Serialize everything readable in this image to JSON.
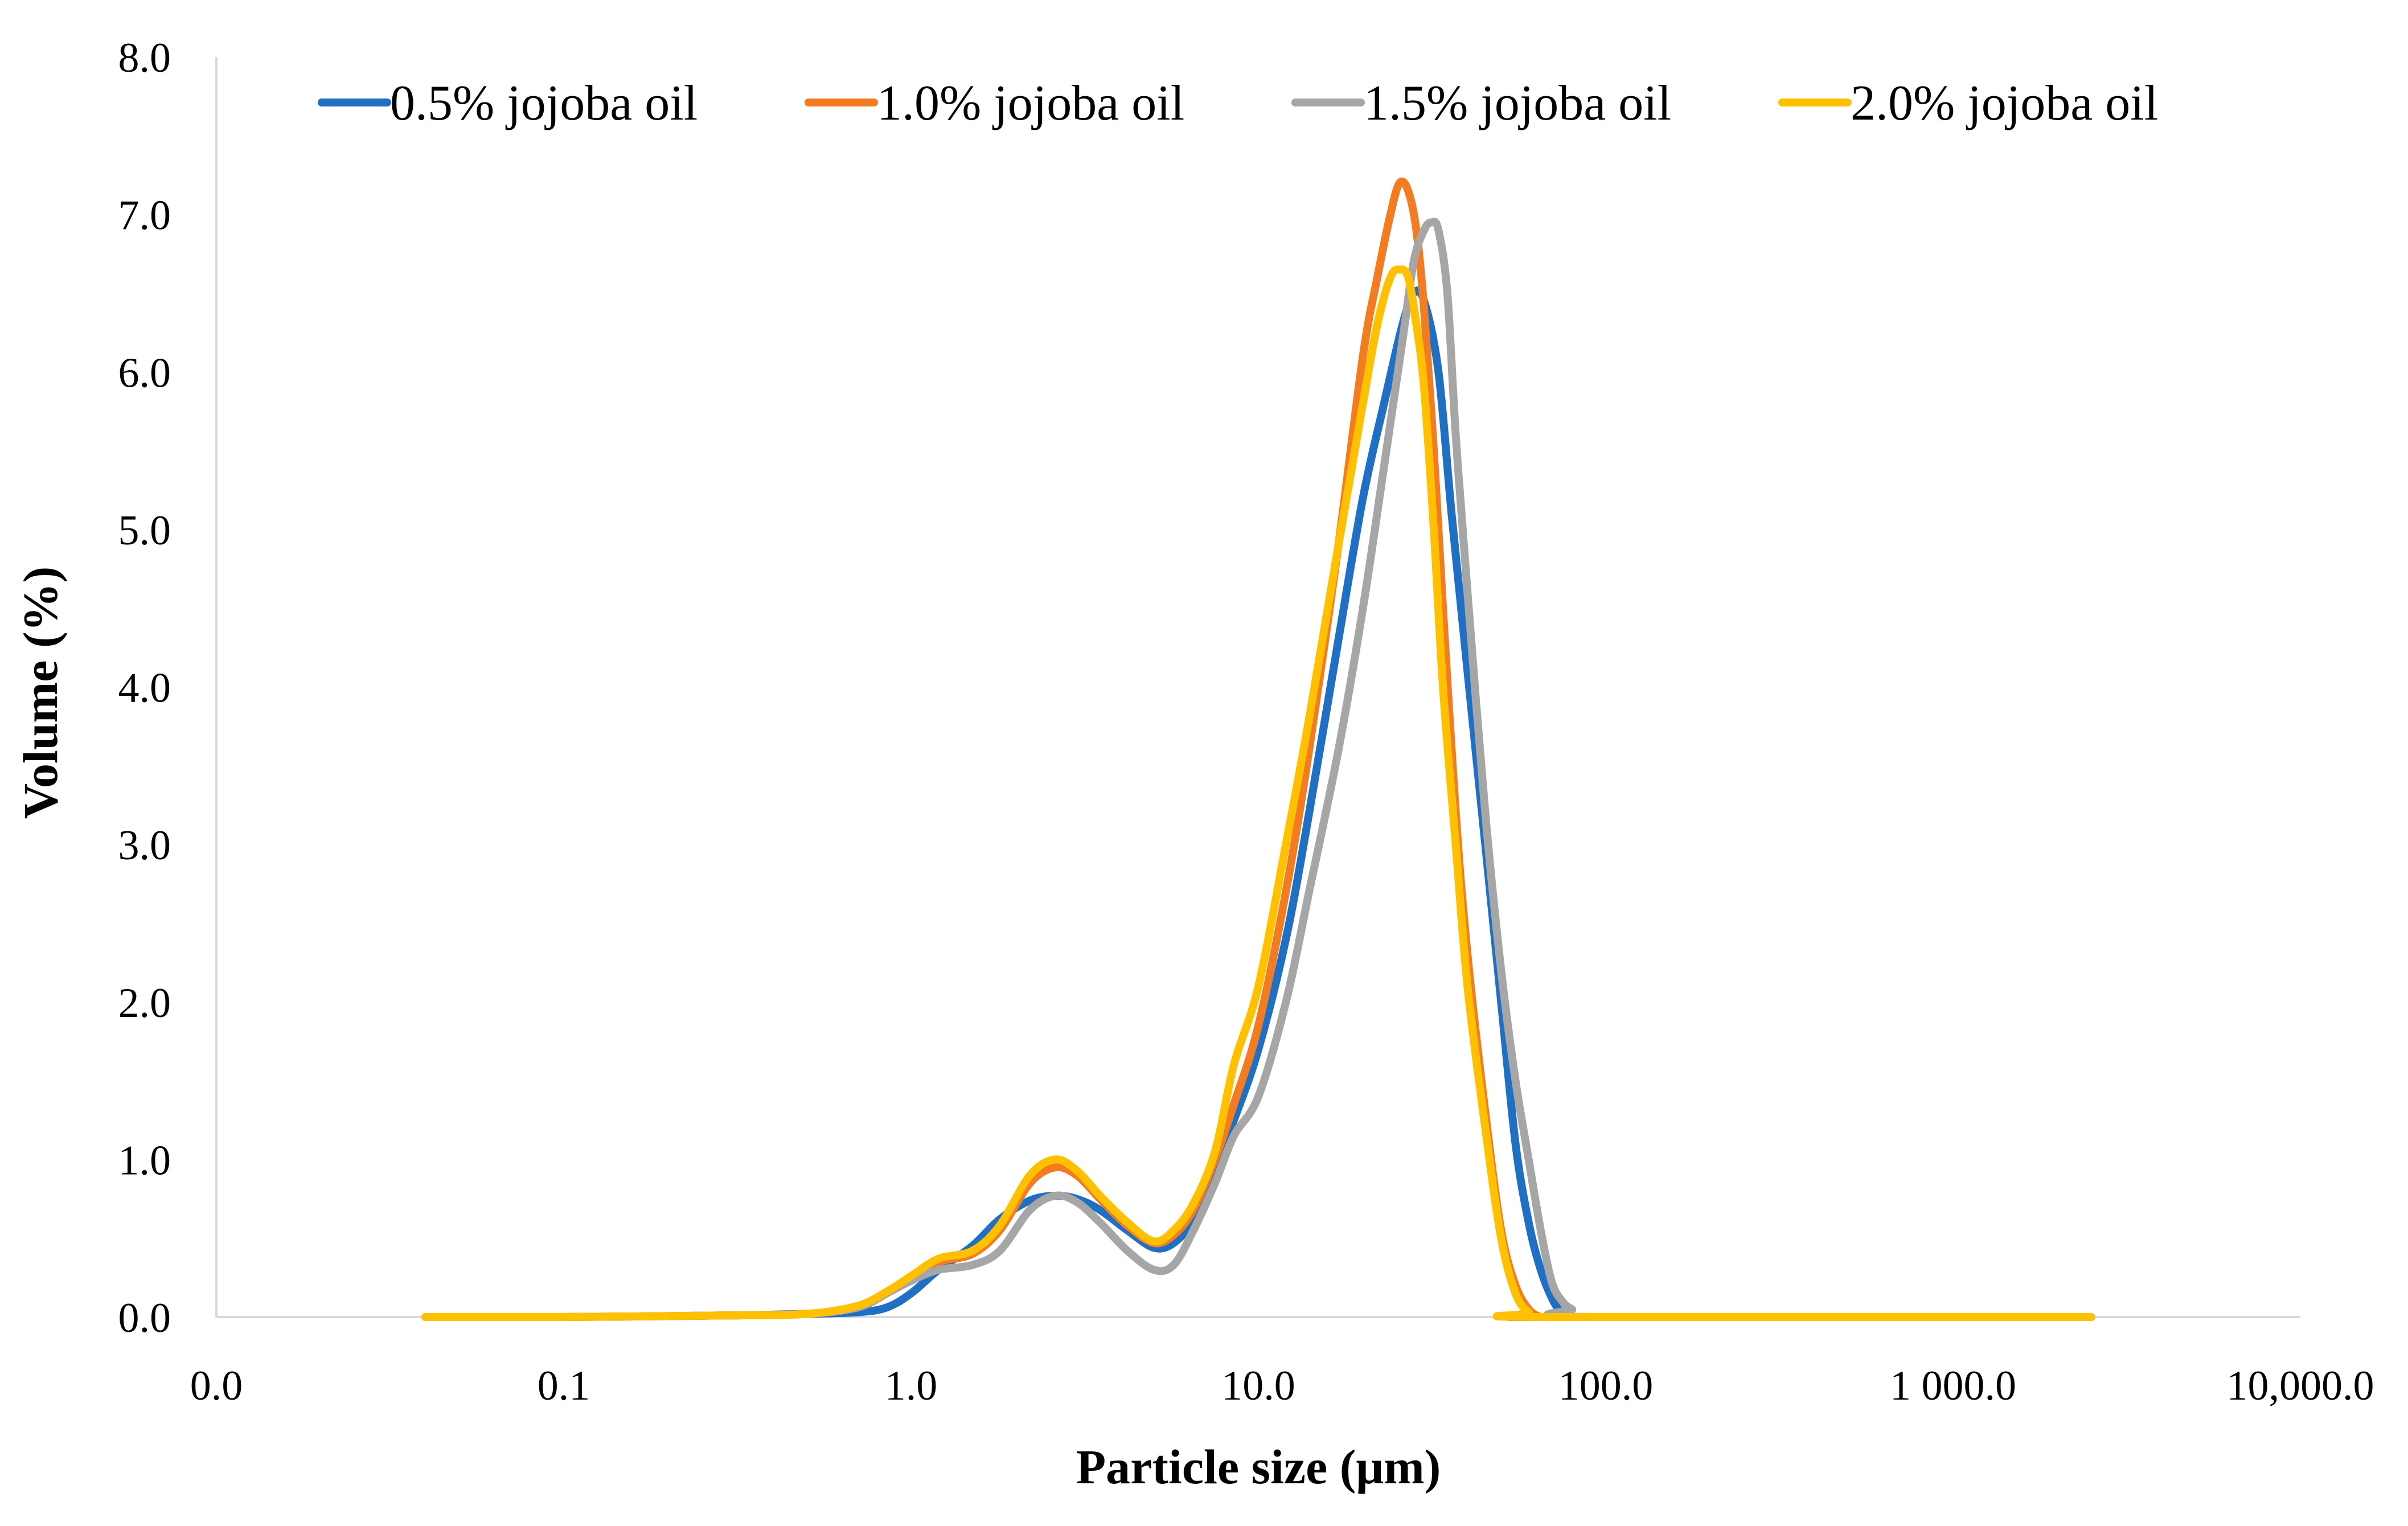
{
  "chart_data": {
    "type": "line",
    "title": "",
    "xlabel": "Particle size (μm)",
    "ylabel": "Volume (%)",
    "x_scale": "log",
    "xlim": [
      0.01,
      10000
    ],
    "ylim": [
      0,
      8
    ],
    "grid": false,
    "legend_position": "top",
    "x_tick_values": [
      0.01,
      0.1,
      1,
      10,
      100,
      1000,
      10000
    ],
    "x_tick_labels": [
      "0.0",
      "0.1",
      "1.0",
      "10.0",
      "100.0",
      "1 000.0",
      "10,000.0"
    ],
    "y_tick_values": [
      0,
      1,
      2,
      3,
      4,
      5,
      6,
      7,
      8
    ],
    "y_tick_labels": [
      "0.0",
      "1.0",
      "2.0",
      "3.0",
      "4.0",
      "5.0",
      "6.0",
      "7.0",
      "8.0"
    ],
    "series": [
      {
        "name": "0.5% jojoba oil",
        "color": "#1f6fc5",
        "x": [
          0.04,
          0.1,
          0.3,
          0.5,
          0.7,
          0.85,
          1.0,
          1.2,
          1.5,
          1.8,
          2.2,
          2.6,
          3.0,
          3.5,
          4.2,
          5.0,
          5.7,
          6.5,
          7.5,
          8.5,
          10,
          12,
          14,
          17,
          20,
          23,
          26,
          28,
          30,
          33,
          36,
          40,
          45,
          50,
          55,
          60,
          65,
          70,
          75,
          80,
          100,
          2500
        ],
        "y": [
          0,
          0,
          0.01,
          0.02,
          0.03,
          0.06,
          0.15,
          0.3,
          0.45,
          0.62,
          0.74,
          0.77,
          0.75,
          0.68,
          0.55,
          0.44,
          0.47,
          0.62,
          0.95,
          1.25,
          1.7,
          2.4,
          3.2,
          4.3,
          5.2,
          5.8,
          6.3,
          6.5,
          6.45,
          6.0,
          5.1,
          4.1,
          3.0,
          2.0,
          1.1,
          0.6,
          0.3,
          0.12,
          0.02,
          0,
          0,
          0
        ]
      },
      {
        "name": "1.0% jojoba oil",
        "color": "#f47c20",
        "x": [
          0.04,
          0.1,
          0.3,
          0.5,
          0.7,
          0.85,
          1.0,
          1.2,
          1.5,
          1.8,
          2.2,
          2.6,
          3.0,
          3.5,
          4.2,
          5.0,
          5.7,
          6.5,
          7.5,
          8.5,
          10,
          12,
          14,
          17,
          20,
          22,
          24,
          25.5,
          27,
          28.5,
          30,
          32,
          34,
          37,
          40,
          45,
          50,
          55,
          60,
          65,
          70,
          2500
        ],
        "y": [
          0,
          0,
          0.01,
          0.02,
          0.06,
          0.15,
          0.25,
          0.35,
          0.4,
          0.55,
          0.85,
          0.95,
          0.9,
          0.75,
          0.58,
          0.47,
          0.52,
          0.68,
          1.0,
          1.35,
          1.85,
          2.7,
          3.6,
          4.9,
          6.1,
          6.6,
          7.0,
          7.2,
          7.15,
          6.9,
          6.4,
          5.5,
          4.5,
          3.2,
          2.3,
          1.3,
          0.55,
          0.2,
          0.05,
          0,
          0,
          0
        ]
      },
      {
        "name": "1.5% jojoba oil",
        "color": "#a6a6a6",
        "x": [
          0.04,
          0.1,
          0.3,
          0.5,
          0.7,
          0.85,
          1.0,
          1.2,
          1.5,
          1.8,
          2.2,
          2.6,
          3.0,
          3.5,
          4.2,
          5.0,
          5.7,
          6.5,
          7.5,
          8.5,
          10,
          12,
          14,
          17,
          20,
          23,
          26,
          28,
          30,
          31.5,
          33,
          35,
          37,
          40,
          45,
          50,
          55,
          60,
          65,
          70,
          75,
          80,
          90,
          2500
        ],
        "y": [
          0,
          0,
          0.01,
          0.02,
          0.06,
          0.15,
          0.23,
          0.3,
          0.33,
          0.42,
          0.68,
          0.77,
          0.73,
          0.6,
          0.42,
          0.3,
          0.33,
          0.55,
          0.85,
          1.15,
          1.4,
          2.0,
          2.7,
          3.6,
          4.5,
          5.4,
          6.2,
          6.7,
          6.9,
          6.95,
          6.9,
          6.5,
          5.6,
          4.6,
          3.2,
          2.2,
          1.5,
          1.0,
          0.55,
          0.22,
          0.1,
          0.05,
          0,
          0
        ]
      },
      {
        "name": "2.0% jojoba oil",
        "color": "#ffc000",
        "x": [
          0.04,
          0.1,
          0.3,
          0.5,
          0.7,
          0.85,
          1.0,
          1.2,
          1.5,
          1.8,
          2.2,
          2.6,
          3.0,
          3.5,
          4.2,
          5.0,
          5.7,
          6.5,
          7.5,
          8.5,
          10,
          12,
          14,
          17,
          20,
          22,
          24,
          25.5,
          27,
          28.5,
          30,
          32,
          34,
          37,
          40,
          45,
          50,
          55,
          60,
          65,
          2500
        ],
        "y": [
          0,
          0,
          0.01,
          0.02,
          0.07,
          0.16,
          0.26,
          0.37,
          0.42,
          0.58,
          0.9,
          1.0,
          0.93,
          0.77,
          0.6,
          0.48,
          0.55,
          0.72,
          1.05,
          1.6,
          2.1,
          3.0,
          3.8,
          4.9,
          5.8,
          6.3,
          6.6,
          6.65,
          6.6,
          6.3,
          5.9,
          5.0,
          4.0,
          3.0,
          2.1,
          1.2,
          0.5,
          0.15,
          0.03,
          0,
          0
        ]
      }
    ]
  }
}
